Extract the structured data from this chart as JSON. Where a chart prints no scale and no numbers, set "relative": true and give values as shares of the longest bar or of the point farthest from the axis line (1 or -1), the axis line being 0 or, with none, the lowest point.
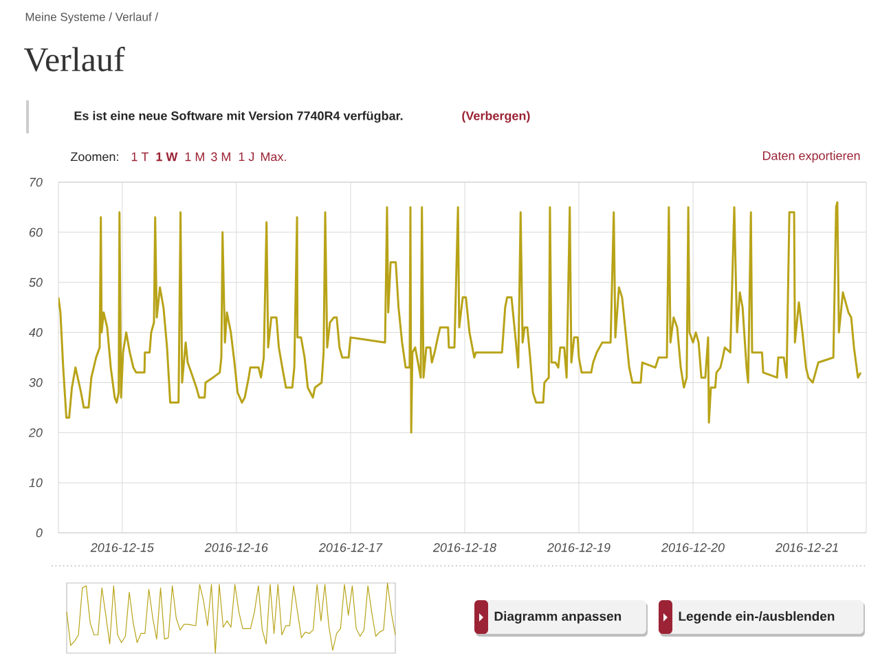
{
  "chart_data": [
    {
      "type": "line",
      "title": "Verlauf",
      "subtitle": "Meine Systeme / Verlauf /",
      "annotations": [
        "Es ist eine neue Software mit Version 7740R4 verfügbar.",
        "(Verbergen)",
        "Zoomen:",
        "1 T",
        "1 W",
        "1 M",
        "3 M",
        "1 J",
        "Max.",
        "Daten exportieren",
        "Diagramm anpassen",
        "Legende ein-/ausblenden"
      ],
      "xlim": [
        "2016-12-14T10:35",
        "2016-12-21T12:25"
      ],
      "xticks": [
        "2016-12-15",
        "2016-12-16",
        "2016-12-17",
        "2016-12-18",
        "2016-12-19",
        "2016-12-20",
        "2016-12-21"
      ],
      "ylim": [
        0,
        70
      ],
      "yticks": [
        0,
        10,
        20,
        30,
        40,
        50,
        60,
        70
      ],
      "grid": true,
      "series": [
        {
          "color": "#b8a318",
          "x": [
            "2016-12-14T10:35",
            "2016-12-14T11:00",
            "2016-12-14T11:35",
            "2016-12-14T12:15",
            "2016-12-14T12:50",
            "2016-12-14T13:25",
            "2016-12-14T14:10",
            "2016-12-14T15:20",
            "2016-12-14T15:55",
            "2016-12-14T16:55",
            "2016-12-14T17:30",
            "2016-12-14T18:30",
            "2016-12-14T19:15",
            "2016-12-14T19:30",
            "2016-12-14T19:40",
            "2016-12-14T20:05",
            "2016-12-14T20:50",
            "2016-12-14T21:35",
            "2016-12-14T22:25",
            "2016-12-14T22:50",
            "2016-12-14T23:15",
            "2016-12-14T23:25",
            "2016-12-14T23:45",
            "2016-12-15T00:10",
            "2016-12-15T00:50",
            "2016-12-15T01:35",
            "2016-12-15T02:20",
            "2016-12-15T02:55",
            "2016-12-15T04:40",
            "2016-12-15T04:45",
            "2016-12-15T05:45",
            "2016-12-15T06:05",
            "2016-12-15T06:40",
            "2016-12-15T06:55",
            "2016-12-15T07:15",
            "2016-12-15T07:55",
            "2016-12-15T08:40",
            "2016-12-15T09:25",
            "2016-12-15T10:05",
            "2016-12-15T11:50",
            "2016-12-15T12:15",
            "2016-12-15T12:35",
            "2016-12-15T13:20",
            "2016-12-15T13:45",
            "2016-12-15T14:30",
            "2016-12-15T15:35",
            "2016-12-15T16:10",
            "2016-12-15T17:20",
            "2016-12-15T17:30",
            "2016-12-15T19:05",
            "2016-12-15T20:30",
            "2016-12-15T20:50",
            "2016-12-15T21:05",
            "2016-12-15T21:35",
            "2016-12-15T22:00",
            "2016-12-15T22:50",
            "2016-12-15T23:35",
            "2016-12-16T00:15",
            "2016-12-16T01:10",
            "2016-12-16T01:45",
            "2016-12-16T02:35",
            "2016-12-16T02:55",
            "2016-12-16T04:40",
            "2016-12-16T05:10",
            "2016-12-16T05:45",
            "2016-12-16T06:20",
            "2016-12-16T06:40",
            "2016-12-16T07:20",
            "2016-12-16T08:25",
            "2016-12-16T08:55",
            "2016-12-16T09:50",
            "2016-12-16T10:25",
            "2016-12-16T11:45",
            "2016-12-16T12:10",
            "2016-12-16T12:45",
            "2016-12-16T12:50",
            "2016-12-16T13:35",
            "2016-12-16T14:20",
            "2016-12-16T15:00",
            "2016-12-16T16:05",
            "2016-12-16T16:30",
            "2016-12-16T17:55",
            "2016-12-16T18:20",
            "2016-12-16T18:40",
            "2016-12-16T19:05",
            "2016-12-16T19:40",
            "2016-12-16T20:30",
            "2016-12-16T21:05",
            "2016-12-16T21:40",
            "2016-12-16T22:15",
            "2016-12-16T23:35",
            "2016-12-17T00:00",
            "2016-12-17T01:25",
            "2016-12-17T07:15",
            "2016-12-17T07:40",
            "2016-12-17T07:55",
            "2016-12-17T08:25",
            "2016-12-17T09:30",
            "2016-12-17T10:05",
            "2016-12-17T10:50",
            "2016-12-17T11:35",
            "2016-12-17T12:25",
            "2016-12-17T12:35",
            "2016-12-17T12:45",
            "2016-12-17T13:00",
            "2016-12-17T13:35",
            "2016-12-17T14:10",
            "2016-12-17T14:45",
            "2016-12-17T15:00",
            "2016-12-17T15:20",
            "2016-12-17T15:55",
            "2016-12-17T16:45",
            "2016-12-17T17:05",
            "2016-12-17T17:40",
            "2016-12-17T18:20",
            "2016-12-17T18:50",
            "2016-12-17T20:30",
            "2016-12-17T20:40",
            "2016-12-17T21:50",
            "2016-12-17T22:35",
            "2016-12-17T22:50",
            "2016-12-17T23:35",
            "2016-12-18T00:15",
            "2016-12-18T01:00",
            "2016-12-18T02:00",
            "2016-12-18T02:20",
            "2016-12-18T07:50",
            "2016-12-18T08:30",
            "2016-12-18T08:55",
            "2016-12-18T09:50",
            "2016-12-18T10:40",
            "2016-12-18T11:15",
            "2016-12-18T11:45",
            "2016-12-18T12:10",
            "2016-12-18T12:35",
            "2016-12-18T13:10",
            "2016-12-18T13:45",
            "2016-12-18T14:20",
            "2016-12-18T15:00",
            "2016-12-18T16:30",
            "2016-12-18T16:45",
            "2016-12-18T17:40",
            "2016-12-18T17:55",
            "2016-12-18T18:15",
            "2016-12-18T19:05",
            "2016-12-18T19:40",
            "2016-12-18T20:05",
            "2016-12-18T20:55",
            "2016-12-18T21:25",
            "2016-12-18T22:05",
            "2016-12-18T22:25",
            "2016-12-18T23:00",
            "2016-12-18T23:45",
            "2016-12-19T00:00",
            "2016-12-19T00:35",
            "2016-12-19T02:35",
            "2016-12-19T03:00",
            "2016-12-19T03:45",
            "2016-12-19T04:55",
            "2016-12-19T06:40",
            "2016-12-19T07:20",
            "2016-12-19T07:40",
            "2016-12-19T08:25",
            "2016-12-19T09:05",
            "2016-12-19T09:50",
            "2016-12-19T10:35",
            "2016-12-19T11:15",
            "2016-12-19T13:00",
            "2016-12-19T13:20",
            "2016-12-19T16:05",
            "2016-12-19T16:45",
            "2016-12-19T18:30",
            "2016-12-19T18:55",
            "2016-12-19T19:15",
            "2016-12-19T19:55",
            "2016-12-19T20:40",
            "2016-12-19T21:25",
            "2016-12-19T22:05",
            "2016-12-19T22:40",
            "2016-12-19T23:00",
            "2016-12-19T23:15",
            "2016-12-20T00:00",
            "2016-12-20T00:35",
            "2016-12-20T01:10",
            "2016-12-20T01:45",
            "2016-12-20T02:35",
            "2016-12-20T03:10",
            "2016-12-20T03:20",
            "2016-12-20T03:45",
            "2016-12-20T04:40",
            "2016-12-20T04:55",
            "2016-12-20T05:45",
            "2016-12-20T06:15",
            "2016-12-20T06:40",
            "2016-12-20T07:50",
            "2016-12-20T08:40",
            "2016-12-20T09:15",
            "2016-12-20T09:50",
            "2016-12-20T10:25",
            "2016-12-20T11:15",
            "2016-12-20T11:35",
            "2016-12-20T12:10",
            "2016-12-20T12:25",
            "2016-12-20T14:30",
            "2016-12-20T14:45",
            "2016-12-20T17:40",
            "2016-12-20T17:55",
            "2016-12-20T19:05",
            "2016-12-20T19:40",
            "2016-12-20T20:15",
            "2016-12-20T21:15",
            "2016-12-20T21:25",
            "2016-12-20T22:15",
            "2016-12-20T23:00",
            "2016-12-20T23:45",
            "2016-12-21T00:15",
            "2016-12-21T01:10",
            "2016-12-21T01:45",
            "2016-12-21T02:20",
            "2016-12-21T05:30",
            "2016-12-21T06:05",
            "2016-12-21T06:20",
            "2016-12-21T06:40",
            "2016-12-21T07:30",
            "2016-12-21T08:05",
            "2016-12-21T08:40",
            "2016-12-21T09:15",
            "2016-12-21T09:50",
            "2016-12-21T10:40",
            "2016-12-21T11:15"
          ],
          "values": [
            47,
            44,
            33,
            23,
            23,
            29,
            33,
            28,
            25,
            25,
            31,
            35,
            37,
            63,
            40,
            44,
            41,
            33,
            27,
            26,
            28,
            64,
            27,
            36,
            40,
            36,
            33,
            32,
            32,
            36,
            36,
            40,
            42,
            63,
            43,
            49,
            45,
            37,
            26,
            26,
            64,
            30,
            38,
            34,
            32,
            29,
            27,
            27,
            30,
            31,
            32,
            35,
            60,
            38,
            44,
            40,
            34,
            28,
            26,
            27,
            31,
            33,
            33,
            31,
            35,
            62,
            37,
            43,
            43,
            37,
            32,
            29,
            29,
            33,
            63,
            39,
            39,
            35,
            29,
            27,
            29,
            30,
            36,
            64,
            37,
            42,
            43,
            43,
            37,
            35,
            35,
            39,
            38.8,
            38,
            65,
            44,
            54,
            54,
            45,
            38,
            33,
            33,
            65,
            20,
            36,
            37,
            34,
            31,
            65,
            31,
            37,
            37,
            34,
            36,
            39,
            41,
            41,
            37,
            37,
            65,
            41,
            47,
            47,
            40,
            35,
            36,
            36,
            45,
            47,
            47,
            39,
            33,
            64,
            38,
            41,
            41,
            35,
            28,
            26,
            26,
            30,
            31,
            65,
            34,
            34,
            33,
            37,
            37,
            31,
            65,
            34,
            39,
            39,
            35,
            32,
            32,
            34,
            36,
            38,
            38,
            64,
            39,
            49,
            47,
            40,
            33,
            30,
            30,
            34,
            33,
            35,
            35,
            65,
            38,
            43,
            41,
            33,
            29,
            31,
            65,
            40,
            38,
            40,
            38,
            31,
            31,
            39,
            22,
            29,
            29,
            32,
            33,
            35,
            37,
            36,
            65,
            40,
            48,
            45,
            33,
            30,
            64,
            36,
            36,
            32,
            31,
            35,
            35,
            31,
            64,
            64,
            38,
            46,
            40,
            33,
            31,
            30,
            32,
            34,
            35,
            65,
            66,
            40,
            48,
            46,
            44,
            43,
            37,
            31,
            32
          ]
        }
      ]
    },
    {
      "type": "line",
      "relative": true,
      "categories": [
        null,
        null,
        null,
        null,
        null,
        null,
        null,
        null,
        null,
        null,
        null,
        null,
        null,
        null,
        null,
        null,
        null,
        null,
        null,
        null,
        null,
        null,
        null,
        null,
        null,
        null,
        null,
        null,
        null,
        null,
        null,
        null,
        null,
        null,
        null,
        null,
        null,
        null,
        null,
        null,
        null,
        null,
        null,
        null,
        null,
        null,
        null,
        null,
        null,
        null,
        null,
        null,
        null,
        null,
        null,
        null,
        null,
        null,
        null,
        null,
        null,
        null,
        null,
        null,
        null,
        null,
        null,
        null,
        null,
        null,
        null,
        null,
        null,
        null,
        null,
        null,
        null,
        null,
        null,
        null,
        null,
        null,
        null,
        null,
        null
      ],
      "series": [
        {
          "color": "#b8a318",
          "values": [
            0.59,
            0.11,
            0.17,
            0.26,
            0.93,
            0.96,
            0.43,
            0.26,
            0.26,
            0.93,
            0.54,
            0.13,
            0.96,
            0.26,
            0.15,
            0.24,
            0.87,
            0.43,
            0.15,
            0.28,
            0.28,
            0.91,
            0.5,
            0.2,
            0.93,
            0.2,
            0.22,
            0.96,
            0.5,
            0.33,
            0.41,
            0.41,
            0.4,
            0.39,
            0.98,
            0.74,
            0.39,
            0.98,
            0,
            0.98,
            0.37,
            0.46,
            0.37,
            0.98,
            0.59,
            0.35,
            0.35,
            0.35,
            0.59,
            0.96,
            0.33,
            0.13,
            0.98,
            0.28,
            0.98,
            0.26,
            0.39,
            0.39,
            0.96,
            0.59,
            0.22,
            0.3,
            0.28,
            0.33,
            0.98,
            0.46,
            0.98,
            0.39,
            0.04,
            0.28,
            0.35,
            0.98,
            0.54,
            0.96,
            0.35,
            0.24,
            0.33,
            0.96,
            0.57,
            0.24,
            0.3,
            0.33,
            1,
            0.57,
            0.26
          ]
        }
      ]
    }
  ]
}
